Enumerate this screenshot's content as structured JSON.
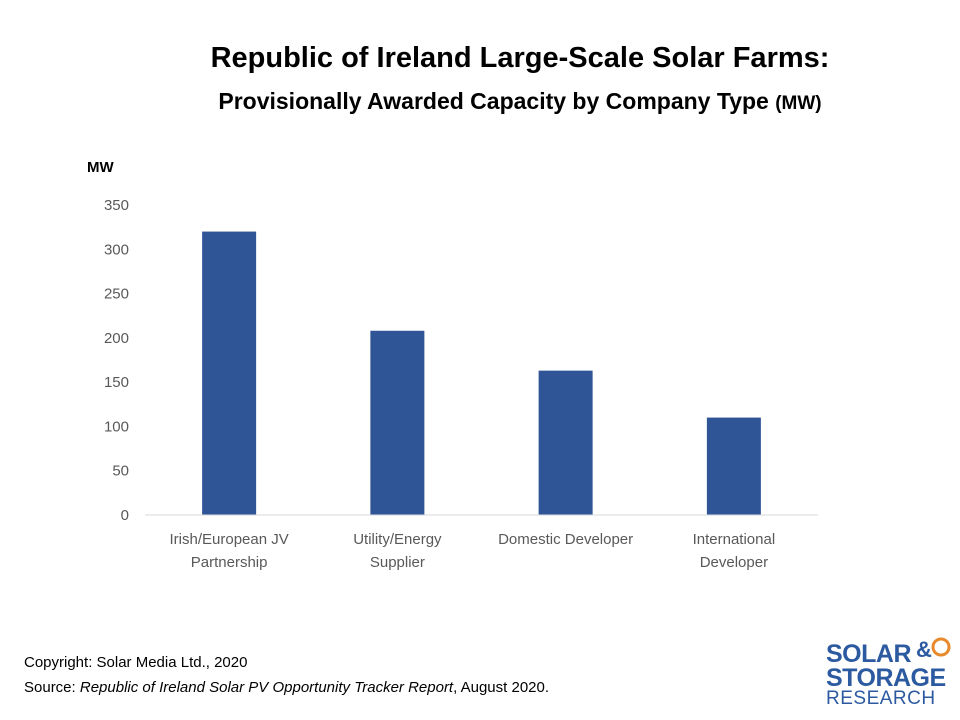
{
  "title": {
    "line1": "Republic of Ireland Large-Scale Solar Farms:",
    "line2": "Provisionally Awarded Capacity by Company Type",
    "line2_unit": "(MW)"
  },
  "chart_data": {
    "type": "bar",
    "title": "Republic of Ireland Large-Scale Solar Farms: Provisionally Awarded Capacity by Company Type (MW)",
    "ylabel": "MW",
    "xlabel": "",
    "categories": [
      [
        "Irish/European JV",
        "Partnership"
      ],
      [
        "Utility/Energy",
        "Supplier"
      ],
      [
        "Domestic Developer"
      ],
      [
        "International",
        "Developer"
      ]
    ],
    "values": [
      320,
      208,
      163,
      110
    ],
    "ylim": [
      0,
      350
    ],
    "yticks": [
      0,
      50,
      100,
      150,
      200,
      250,
      300,
      350
    ],
    "bar_color": "#2f5597",
    "grid": false,
    "legend": "none"
  },
  "footer": {
    "copyright": "Copyright: Solar Media Ltd., 2020",
    "source_prefix": "Source: ",
    "source_italic": "Republic of Ireland Solar PV Opportunity Tracker Report",
    "source_suffix": ", August 2020."
  },
  "logo": {
    "solar": "SOLAR",
    "amp": "&",
    "storage": "STORAGE",
    "research": "RESEARCH",
    "brand_color": "#2c5aa0",
    "accent_color": "#e8892b"
  }
}
